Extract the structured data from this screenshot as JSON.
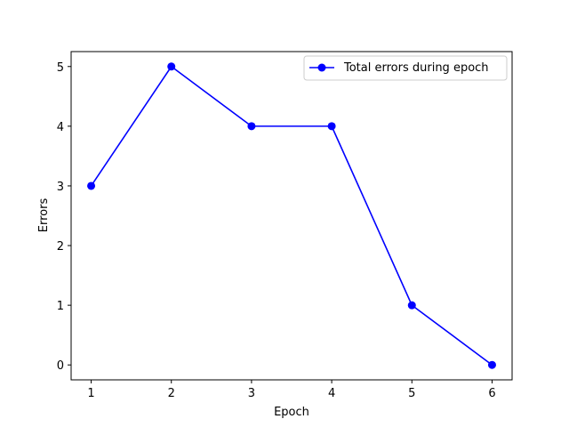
{
  "chart_data": {
    "type": "line",
    "title": "",
    "xlabel": "Epoch",
    "ylabel": "Errors",
    "x": [
      1,
      2,
      3,
      4,
      5,
      6
    ],
    "series": [
      {
        "name": "Total errors during epoch",
        "values": [
          3,
          5,
          4,
          4,
          1,
          0
        ],
        "color": "#0000ff",
        "marker": "circle"
      }
    ],
    "xticks": [
      1,
      2,
      3,
      4,
      5,
      6
    ],
    "yticks": [
      0,
      1,
      2,
      3,
      4,
      5
    ],
    "xlim": [
      0.75,
      6.25
    ],
    "ylim": [
      -0.25,
      5.25
    ],
    "grid": false,
    "legend_position": "top-right"
  }
}
